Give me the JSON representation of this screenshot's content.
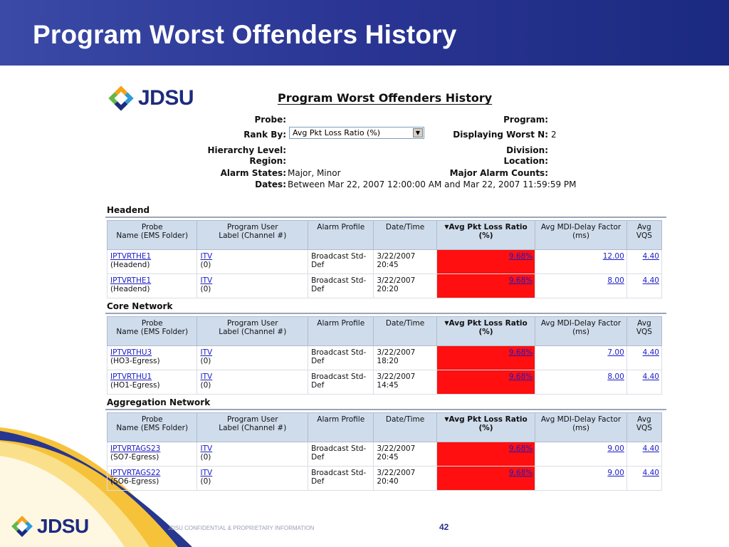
{
  "slide": {
    "title": "Program Worst Offenders History",
    "footer_text": "JDSU CONFIDENTIAL & PROPRIETARY INFORMATION",
    "page_number": "42",
    "logo_text": "JDSU"
  },
  "report": {
    "logo_text": "JDSU",
    "title": "Program Worst Offenders History",
    "probe_label": "Probe:",
    "probe_value": "",
    "rank_by_label": "Rank By:",
    "rank_by_value": "Avg Pkt Loss Ratio (%)",
    "hierarchy_label": "Hierarchy Level:",
    "region_label": "Region:",
    "alarm_states_label": "Alarm States:",
    "alarm_states_value": "Major, Minor",
    "dates_label": "Dates:",
    "dates_value": "Between Mar 22, 2007 12:00:00 AM and Mar 22, 2007 11:59:59 PM",
    "program_label": "Program:",
    "displaying_label": "Displaying Worst N:",
    "displaying_value": "2",
    "division_label": "Division:",
    "location_label": "Location:",
    "major_alarm_label": "Major Alarm Counts:"
  },
  "columns": {
    "probe_1": "Probe",
    "probe_2": "Name (EMS Folder)",
    "prog_1": "Program User",
    "prog_2": "Label (Channel #)",
    "alarm": "Alarm Profile",
    "datetime": "Date/Time",
    "loss_1": "Avg Pkt Loss Ratio",
    "loss_2": "(%)",
    "mdi_1": "Avg MDI-Delay Factor",
    "mdi_2": "(ms)",
    "vqs_1": "Avg",
    "vqs_2": "VQS"
  },
  "sections": [
    {
      "name": "Headend",
      "rows": [
        {
          "probe": "IPTVRTHE1",
          "folder": "(Headend)",
          "label": "ITV",
          "channel": "(0)",
          "alarm1": "Broadcast Std-",
          "alarm2": "Def",
          "date": "3/22/2007",
          "time": "20:45",
          "loss": "9.68%",
          "mdi": "12.00",
          "vqs": "4.40"
        },
        {
          "probe": "IPTVRTHE1",
          "folder": "(Headend)",
          "label": "ITV",
          "channel": "(0)",
          "alarm1": "Broadcast Std-",
          "alarm2": "Def",
          "date": "3/22/2007",
          "time": "20:20",
          "loss": "9.68%",
          "mdi": "8.00",
          "vqs": "4.40"
        }
      ]
    },
    {
      "name": "Core Network",
      "rows": [
        {
          "probe": "IPTVRTHU3",
          "folder": "(HO3-Egress)",
          "label": "ITV",
          "channel": "(0)",
          "alarm1": "Broadcast Std-",
          "alarm2": "Def",
          "date": "3/22/2007",
          "time": "18:20",
          "loss": "9.68%",
          "mdi": "7.00",
          "vqs": "4.40"
        },
        {
          "probe": "IPTVRTHU1",
          "folder": "(HO1-Egress)",
          "label": "ITV",
          "channel": "(0)",
          "alarm1": "Broadcast Std-",
          "alarm2": "Def",
          "date": "3/22/2007",
          "time": "14:45",
          "loss": "9.68%",
          "mdi": "8.00",
          "vqs": "4.40"
        }
      ]
    },
    {
      "name": "Aggregation Network",
      "rows": [
        {
          "probe": "IPTVRTAGS23",
          "folder": "(SO7-Egress)",
          "label": "ITV",
          "channel": "(0)",
          "alarm1": "Broadcast Std-",
          "alarm2": "Def",
          "date": "3/22/2007",
          "time": "20:45",
          "loss": "9.68%",
          "mdi": "9.00",
          "vqs": "4.40"
        },
        {
          "probe": "IPTVRTAGS22",
          "folder": "(SO6-Egress)",
          "label": "ITV",
          "channel": "(0)",
          "alarm1": "Broadcast Std-",
          "alarm2": "Def",
          "date": "3/22/2007",
          "time": "20:40",
          "loss": "9.68%",
          "mdi": "9.00",
          "vqs": "4.40"
        }
      ]
    }
  ],
  "colors": {
    "title_bar": "#2a3593",
    "alarm_cell": "#ff0f0f",
    "header_cell": "#cfdcec",
    "link": "#1a1ac8"
  }
}
